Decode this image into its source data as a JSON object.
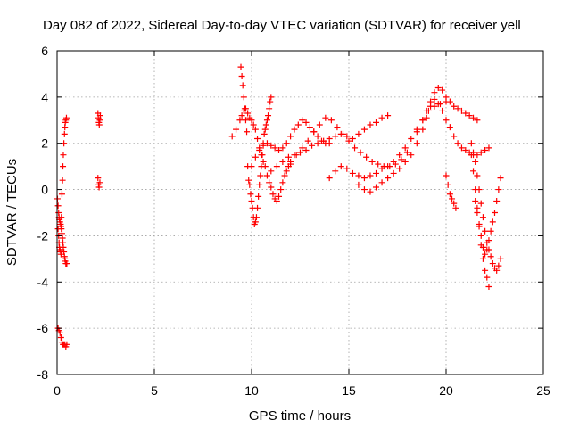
{
  "chart_data": {
    "type": "scatter",
    "title": "Day 082 of 2022, Sidereal Day-to-day VTEC variation (SDTVAR) for receiver yell",
    "xlabel": "GPS time / hours",
    "ylabel": "SDTVAR / TECUs",
    "xlim": [
      0,
      25
    ],
    "ylim": [
      -8,
      6
    ],
    "x_ticks": [
      0,
      5,
      10,
      15,
      20,
      25
    ],
    "y_ticks": [
      -8,
      -6,
      -4,
      -2,
      0,
      2,
      4,
      6
    ],
    "grid": true,
    "marker": "+",
    "color": "#ff0000",
    "series": [
      {
        "name": "SDTVAR",
        "x": [
          0.02,
          0.05,
          0.08,
          0.1,
          0.12,
          0.15,
          0.18,
          0.2,
          0.22,
          0.25,
          0.28,
          0.3,
          0.32,
          0.35,
          0.38,
          0.4,
          0.42,
          0.45,
          0.48,
          0.5,
          0.05,
          0.08,
          0.1,
          0.12,
          0.15,
          0.18,
          0.2,
          0.22,
          0.25,
          0.28,
          0.3,
          0.32,
          0.35,
          0.38,
          0.4,
          0.42,
          0.45,
          0.48,
          0.05,
          0.1,
          0.15,
          0.2,
          0.25,
          0.3,
          0.35,
          0.4,
          0.45,
          0.5,
          2.1,
          2.12,
          2.15,
          2.17,
          2.2,
          2.22,
          2.1,
          2.13,
          2.16,
          2.2,
          9.0,
          9.2,
          9.4,
          9.45,
          9.5,
          9.55,
          9.6,
          9.65,
          9.7,
          9.75,
          9.8,
          9.85,
          9.9,
          9.95,
          10.0,
          10.05,
          10.1,
          10.15,
          10.2,
          10.25,
          10.3,
          10.35,
          10.4,
          10.45,
          10.5,
          10.55,
          10.6,
          10.65,
          10.7,
          10.75,
          10.8,
          10.85,
          10.9,
          10.95,
          11.0,
          9.5,
          9.6,
          9.7,
          9.8,
          9.9,
          10.0,
          10.1,
          10.2,
          10.3,
          10.4,
          10.5,
          10.6,
          10.7,
          10.8,
          10.9,
          11.0,
          11.1,
          11.2,
          11.3,
          11.4,
          11.5,
          11.6,
          11.7,
          11.8,
          11.9,
          12.0,
          10.0,
          10.2,
          10.4,
          10.6,
          10.8,
          11.0,
          11.2,
          11.4,
          11.6,
          11.8,
          12.0,
          12.2,
          12.4,
          12.6,
          12.8,
          13.0,
          13.2,
          13.4,
          13.6,
          13.8,
          14.0,
          11.0,
          11.3,
          11.6,
          11.9,
          12.2,
          12.5,
          12.8,
          13.1,
          13.4,
          13.7,
          14.0,
          14.3,
          14.6,
          14.9,
          15.2,
          15.5,
          15.8,
          16.1,
          16.4,
          16.7,
          17.0,
          12.0,
          12.3,
          12.6,
          12.9,
          13.2,
          13.5,
          13.8,
          14.1,
          14.4,
          14.7,
          15.0,
          15.3,
          15.6,
          15.9,
          16.2,
          16.5,
          16.8,
          17.1,
          17.4,
          17.7,
          18.0,
          14.0,
          14.3,
          14.6,
          14.9,
          15.2,
          15.5,
          15.8,
          16.1,
          16.4,
          16.7,
          17.0,
          17.3,
          17.6,
          17.9,
          18.2,
          18.5,
          18.8,
          19.1,
          19.4,
          19.7,
          20.0,
          15.5,
          15.8,
          16.1,
          16.4,
          16.7,
          17.0,
          17.3,
          17.6,
          17.9,
          18.2,
          18.5,
          18.8,
          19.0,
          19.2,
          19.4,
          19.6,
          19.8,
          20.0,
          20.2,
          20.4,
          20.6,
          20.8,
          21.0,
          21.2,
          21.4,
          21.6,
          18.5,
          18.8,
          19.0,
          19.2,
          19.4,
          19.6,
          19.8,
          20.0,
          20.2,
          20.4,
          20.6,
          20.8,
          21.0,
          21.2,
          21.4,
          21.6,
          21.8,
          22.0,
          22.2,
          20.0,
          20.1,
          20.2,
          20.3,
          20.4,
          20.5,
          21.3,
          21.4,
          21.5,
          21.6,
          21.7,
          21.8,
          21.9,
          22.0,
          22.1,
          22.2,
          21.3,
          21.4,
          21.5,
          21.6,
          21.7,
          21.8,
          21.9,
          22.0,
          22.1,
          22.2,
          22.3,
          22.4,
          22.5,
          22.6,
          22.7,
          22.8,
          21.5,
          21.6,
          21.7,
          21.8,
          21.9,
          22.0,
          22.1,
          22.2,
          22.3,
          22.4,
          22.5,
          22.6,
          22.7,
          22.8
        ],
        "y": [
          -0.4,
          -0.7,
          -1.0,
          -1.2,
          -1.3,
          -1.4,
          -1.5,
          -1.6,
          -1.7,
          -1.9,
          -2.1,
          -2.3,
          -2.5,
          -2.7,
          -2.9,
          -3.0,
          -3.1,
          -3.2,
          -3.2,
          -3.2,
          -1.7,
          -2.0,
          -2.3,
          -2.5,
          -2.6,
          -2.7,
          -2.8,
          -1.2,
          -0.2,
          0.4,
          1.0,
          1.5,
          2.0,
          2.4,
          2.7,
          2.9,
          3.0,
          3.1,
          -6.0,
          -6.1,
          -6.2,
          -6.4,
          -6.6,
          -6.7,
          -6.7,
          -6.7,
          -6.8,
          -6.7,
          3.3,
          3.1,
          2.9,
          2.8,
          3.0,
          3.2,
          0.5,
          0.2,
          0.1,
          0.3,
          2.3,
          2.6,
          3.0,
          5.3,
          4.9,
          4.5,
          4.0,
          3.5,
          3.0,
          2.5,
          1.0,
          0.4,
          0.2,
          -0.2,
          -0.5,
          -0.8,
          -1.2,
          -1.5,
          -1.4,
          -1.2,
          -0.8,
          -0.3,
          0.2,
          0.6,
          1.0,
          1.5,
          2.0,
          2.4,
          2.6,
          2.8,
          3.0,
          3.2,
          3.5,
          3.8,
          4.0,
          3.2,
          3.4,
          3.5,
          3.3,
          3.1,
          3.0,
          2.8,
          2.6,
          2.2,
          1.8,
          1.5,
          1.2,
          1.0,
          0.6,
          0.3,
          0.1,
          -0.2,
          -0.4,
          -0.5,
          -0.3,
          0.0,
          0.3,
          0.6,
          0.8,
          1.0,
          1.1,
          1.0,
          1.4,
          1.7,
          1.9,
          2.0,
          1.9,
          1.8,
          1.7,
          1.8,
          2.0,
          2.3,
          2.6,
          2.8,
          3.0,
          2.9,
          2.7,
          2.5,
          2.3,
          2.1,
          2.0,
          2.0,
          0.8,
          1.0,
          1.2,
          1.4,
          1.5,
          1.6,
          1.7,
          1.9,
          2.0,
          2.1,
          2.2,
          2.3,
          2.4,
          2.3,
          2.2,
          2.4,
          2.6,
          2.8,
          2.9,
          3.1,
          3.2,
          1.2,
          1.5,
          1.8,
          2.1,
          2.5,
          2.8,
          3.1,
          3.0,
          2.7,
          2.4,
          2.1,
          1.8,
          1.6,
          1.4,
          1.2,
          1.1,
          1.0,
          1.0,
          1.1,
          1.3,
          1.6,
          0.5,
          0.8,
          1.0,
          0.9,
          0.7,
          0.6,
          0.5,
          0.6,
          0.7,
          0.9,
          1.0,
          1.2,
          1.5,
          1.8,
          2.2,
          2.6,
          3.0,
          3.4,
          3.6,
          3.7,
          3.8,
          0.2,
          0.0,
          -0.1,
          0.1,
          0.3,
          0.5,
          0.7,
          0.9,
          1.2,
          1.5,
          2.0,
          2.6,
          3.1,
          3.6,
          4.2,
          4.4,
          4.3,
          4.0,
          3.8,
          3.6,
          3.5,
          3.4,
          3.3,
          3.2,
          3.1,
          3.0,
          2.5,
          3.0,
          3.4,
          3.8,
          3.9,
          3.7,
          3.4,
          3.0,
          2.7,
          2.3,
          2.0,
          1.8,
          1.7,
          1.6,
          1.5,
          1.5,
          1.6,
          1.7,
          1.8,
          0.6,
          0.2,
          -0.2,
          -0.4,
          -0.6,
          -0.8,
          1.5,
          0.8,
          0.0,
          -0.8,
          -1.6,
          -2.4,
          -3.0,
          -3.5,
          -3.8,
          -4.2,
          2.0,
          1.6,
          1.2,
          0.6,
          0.0,
          -0.6,
          -1.2,
          -1.8,
          -2.3,
          -2.6,
          -2.9,
          -3.2,
          -3.4,
          -3.5,
          -3.3,
          -3.0,
          -0.5,
          -1.0,
          -1.5,
          -2.0,
          -2.5,
          -2.8,
          -2.6,
          -2.2,
          -1.8,
          -1.4,
          -1.0,
          -0.5,
          0.0,
          0.5
        ]
      }
    ]
  }
}
